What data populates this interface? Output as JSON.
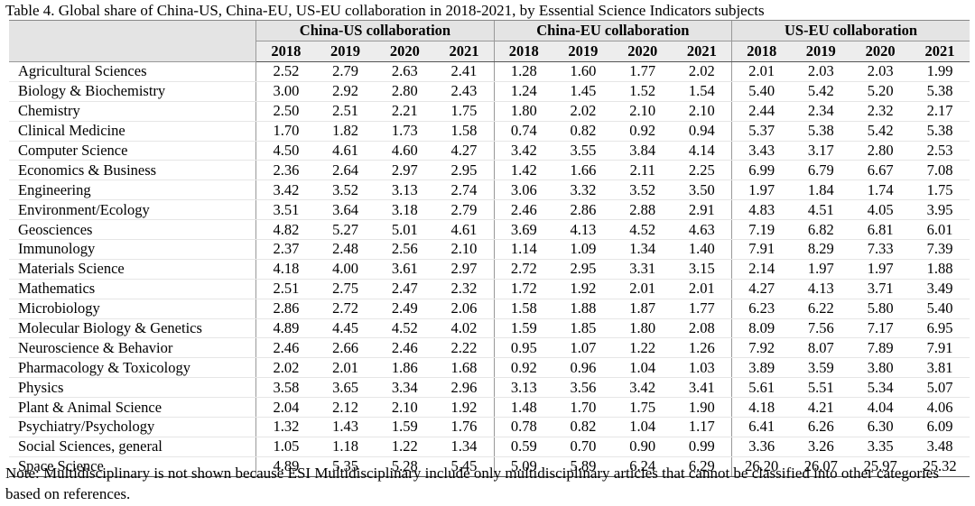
{
  "caption": "Table 4. Global share of China-US, China-EU, US-EU collaboration in 2018-2021, by Essential Science Indicators subjects",
  "groups": [
    "China-US collaboration",
    "China-EU collaboration",
    "US-EU collaboration"
  ],
  "years": [
    "2018",
    "2019",
    "2020",
    "2021"
  ],
  "rows": [
    {
      "subject": "Agricultural Sciences",
      "values": [
        "2.52",
        "2.79",
        "2.63",
        "2.41",
        "1.28",
        "1.60",
        "1.77",
        "2.02",
        "2.01",
        "2.03",
        "2.03",
        "1.99"
      ]
    },
    {
      "subject": "Biology & Biochemistry",
      "values": [
        "3.00",
        "2.92",
        "2.80",
        "2.43",
        "1.24",
        "1.45",
        "1.52",
        "1.54",
        "5.40",
        "5.42",
        "5.20",
        "5.38"
      ]
    },
    {
      "subject": "Chemistry",
      "values": [
        "2.50",
        "2.51",
        "2.21",
        "1.75",
        "1.80",
        "2.02",
        "2.10",
        "2.10",
        "2.44",
        "2.34",
        "2.32",
        "2.17"
      ]
    },
    {
      "subject": "Clinical Medicine",
      "values": [
        "1.70",
        "1.82",
        "1.73",
        "1.58",
        "0.74",
        "0.82",
        "0.92",
        "0.94",
        "5.37",
        "5.38",
        "5.42",
        "5.38"
      ]
    },
    {
      "subject": "Computer Science",
      "values": [
        "4.50",
        "4.61",
        "4.60",
        "4.27",
        "3.42",
        "3.55",
        "3.84",
        "4.14",
        "3.43",
        "3.17",
        "2.80",
        "2.53"
      ]
    },
    {
      "subject": "Economics & Business",
      "values": [
        "2.36",
        "2.64",
        "2.97",
        "2.95",
        "1.42",
        "1.66",
        "2.11",
        "2.25",
        "6.99",
        "6.79",
        "6.67",
        "7.08"
      ]
    },
    {
      "subject": "Engineering",
      "values": [
        "3.42",
        "3.52",
        "3.13",
        "2.74",
        "3.06",
        "3.32",
        "3.52",
        "3.50",
        "1.97",
        "1.84",
        "1.74",
        "1.75"
      ]
    },
    {
      "subject": "Environment/Ecology",
      "values": [
        "3.51",
        "3.64",
        "3.18",
        "2.79",
        "2.46",
        "2.86",
        "2.88",
        "2.91",
        "4.83",
        "4.51",
        "4.05",
        "3.95"
      ]
    },
    {
      "subject": "Geosciences",
      "values": [
        "4.82",
        "5.27",
        "5.01",
        "4.61",
        "3.69",
        "4.13",
        "4.52",
        "4.63",
        "7.19",
        "6.82",
        "6.81",
        "6.01"
      ]
    },
    {
      "subject": "Immunology",
      "values": [
        "2.37",
        "2.48",
        "2.56",
        "2.10",
        "1.14",
        "1.09",
        "1.34",
        "1.40",
        "7.91",
        "8.29",
        "7.33",
        "7.39"
      ]
    },
    {
      "subject": "Materials Science",
      "values": [
        "4.18",
        "4.00",
        "3.61",
        "2.97",
        "2.72",
        "2.95",
        "3.31",
        "3.15",
        "2.14",
        "1.97",
        "1.97",
        "1.88"
      ]
    },
    {
      "subject": "Mathematics",
      "values": [
        "2.51",
        "2.75",
        "2.47",
        "2.32",
        "1.72",
        "1.92",
        "2.01",
        "2.01",
        "4.27",
        "4.13",
        "3.71",
        "3.49"
      ]
    },
    {
      "subject": "Microbiology",
      "values": [
        "2.86",
        "2.72",
        "2.49",
        "2.06",
        "1.58",
        "1.88",
        "1.87",
        "1.77",
        "6.23",
        "6.22",
        "5.80",
        "5.40"
      ]
    },
    {
      "subject": "Molecular Biology & Genetics",
      "values": [
        "4.89",
        "4.45",
        "4.52",
        "4.02",
        "1.59",
        "1.85",
        "1.80",
        "2.08",
        "8.09",
        "7.56",
        "7.17",
        "6.95"
      ]
    },
    {
      "subject": "Neuroscience & Behavior",
      "values": [
        "2.46",
        "2.66",
        "2.46",
        "2.22",
        "0.95",
        "1.07",
        "1.22",
        "1.26",
        "7.92",
        "8.07",
        "7.89",
        "7.91"
      ]
    },
    {
      "subject": "Pharmacology & Toxicology",
      "values": [
        "2.02",
        "2.01",
        "1.86",
        "1.68",
        "0.92",
        "0.96",
        "1.04",
        "1.03",
        "3.89",
        "3.59",
        "3.80",
        "3.81"
      ]
    },
    {
      "subject": "Physics",
      "values": [
        "3.58",
        "3.65",
        "3.34",
        "2.96",
        "3.13",
        "3.56",
        "3.42",
        "3.41",
        "5.61",
        "5.51",
        "5.34",
        "5.07"
      ]
    },
    {
      "subject": "Plant & Animal Science",
      "values": [
        "2.04",
        "2.12",
        "2.10",
        "1.92",
        "1.48",
        "1.70",
        "1.75",
        "1.90",
        "4.18",
        "4.21",
        "4.04",
        "4.06"
      ]
    },
    {
      "subject": "Psychiatry/Psychology",
      "values": [
        "1.32",
        "1.43",
        "1.59",
        "1.76",
        "0.78",
        "0.82",
        "1.04",
        "1.17",
        "6.41",
        "6.26",
        "6.30",
        "6.09"
      ]
    },
    {
      "subject": "Social Sciences, general",
      "values": [
        "1.05",
        "1.18",
        "1.22",
        "1.34",
        "0.59",
        "0.70",
        "0.90",
        "0.99",
        "3.36",
        "3.26",
        "3.35",
        "3.48"
      ]
    },
    {
      "subject": "Space Science",
      "values": [
        "4.89",
        "5.35",
        "5.28",
        "5.45",
        "5.09",
        "5.89",
        "6.24",
        "6.29",
        "26.20",
        "26.07",
        "25.97",
        "25.32"
      ]
    }
  ],
  "note": "Note: Multidisciplinary is not shown because ESI Multidisciplinary include only multidisciplinary articles that cannot be classified into other categories based on references."
}
